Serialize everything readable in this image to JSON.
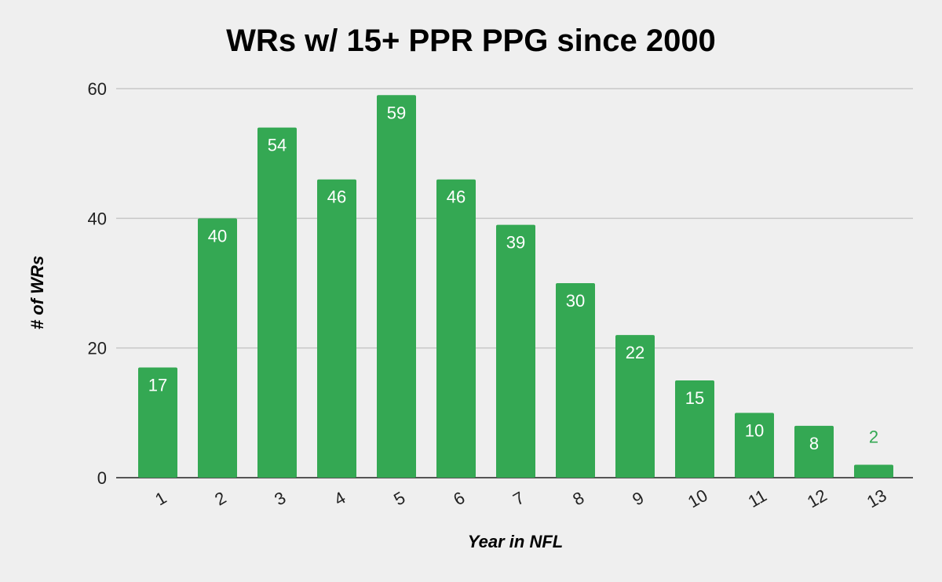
{
  "colors": {
    "background": "#efefef",
    "bar": "#34a853",
    "gridline": "#c7c7c7",
    "label_inside": "#ffffff",
    "label_outside": "#34a853"
  },
  "chart_data": {
    "type": "bar",
    "title": "WRs w/ 15+ PPR PPG since 2000",
    "xlabel": "Year in NFL",
    "ylabel": "# of WRs",
    "categories": [
      "1",
      "2",
      "3",
      "4",
      "5",
      "6",
      "7",
      "8",
      "9",
      "10",
      "11",
      "12",
      "13"
    ],
    "values": [
      17,
      40,
      54,
      46,
      59,
      46,
      39,
      30,
      22,
      15,
      10,
      8,
      2
    ],
    "ylim": [
      0,
      60
    ],
    "yticks": [
      0,
      20,
      40,
      60
    ],
    "grid": true,
    "legend": "none"
  }
}
